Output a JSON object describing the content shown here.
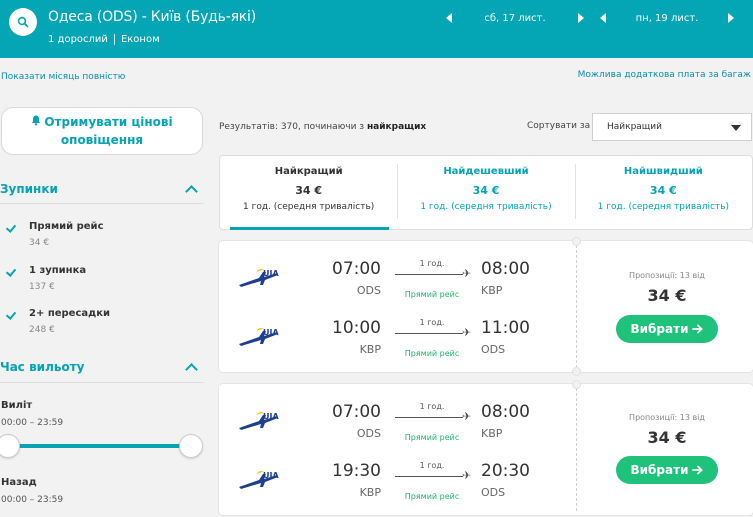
{
  "header": {
    "route": "Одеса (ODS) - Київ (Будь-які)",
    "passengers": "1 дорослий",
    "cabin": "Економ",
    "depart_date": "сб, 17 лист.",
    "return_date": "пн, 19 лист."
  },
  "links": {
    "show_month": "Показати місяць повністю",
    "baggage_fee": "Можлива додаткова плата за багаж"
  },
  "sidebar": {
    "alert_button": "Отримувати цінові оповіщення",
    "stops_title": "Зупинки",
    "stops": [
      {
        "label": "Прямий рейс",
        "price": "34 €"
      },
      {
        "label": "1 зупинка",
        "price": "137 €"
      },
      {
        "label": "2+ пересадки",
        "price": "248 €"
      }
    ],
    "departure_time_title": "Час вильоту",
    "outbound_label": "Виліт",
    "outbound_range": "00:00 – 23:59",
    "return_label": "Назад",
    "return_range": "00:00 – 23:59"
  },
  "results": {
    "count_prefix": "Результатів: 370, починаючи з",
    "count_sort": "найкращих",
    "sort_label": "Сортувати за",
    "sort_value": "Найкращий"
  },
  "tabs": [
    {
      "name": "Найкращий",
      "price": "34 €",
      "duration": "1 год. (середня тривалість)"
    },
    {
      "name": "Найдешевший",
      "price": "34 €",
      "duration": "1 год. (середня тривалість)"
    },
    {
      "name": "Найшвидший",
      "price": "34 €",
      "duration": "1 год. (середня тривалість)"
    }
  ],
  "flights": [
    {
      "legs": [
        {
          "airline": "UIA",
          "dep_time": "07:00",
          "dep_airport": "ODS",
          "duration": "1 год.",
          "stops": "Прямий рейс",
          "arr_time": "08:00",
          "arr_airport": "KBP"
        },
        {
          "airline": "UIA",
          "dep_time": "10:00",
          "dep_airport": "KBP",
          "duration": "1 год.",
          "stops": "Прямий рейс",
          "arr_time": "11:00",
          "arr_airport": "ODS"
        }
      ],
      "offers": "Пропозиції: 13 від",
      "price": "34 €",
      "select_label": "Вибрати"
    },
    {
      "legs": [
        {
          "airline": "UIA",
          "dep_time": "07:00",
          "dep_airport": "ODS",
          "duration": "1 год.",
          "stops": "Прямий рейс",
          "arr_time": "08:00",
          "arr_airport": "KBP"
        },
        {
          "airline": "UIA",
          "dep_time": "19:30",
          "dep_airport": "KBP",
          "duration": "1 год.",
          "stops": "Прямий рейс",
          "arr_time": "20:30",
          "arr_airport": "ODS"
        }
      ],
      "offers": "Пропозиції: 13 від",
      "price": "34 €",
      "select_label": "Вибрати"
    }
  ],
  "colors": {
    "header_bg": "#04a5b4",
    "accent": "#06a3b3",
    "select_button": "#1ec27a",
    "direct_flight": "#20b36a"
  },
  "icons": {
    "search": "search-icon",
    "bell": "bell-icon",
    "plane": "plane-icon",
    "arrow": "arrow-right-icon",
    "check": "check-icon",
    "chevron": "chevron-up-icon"
  }
}
